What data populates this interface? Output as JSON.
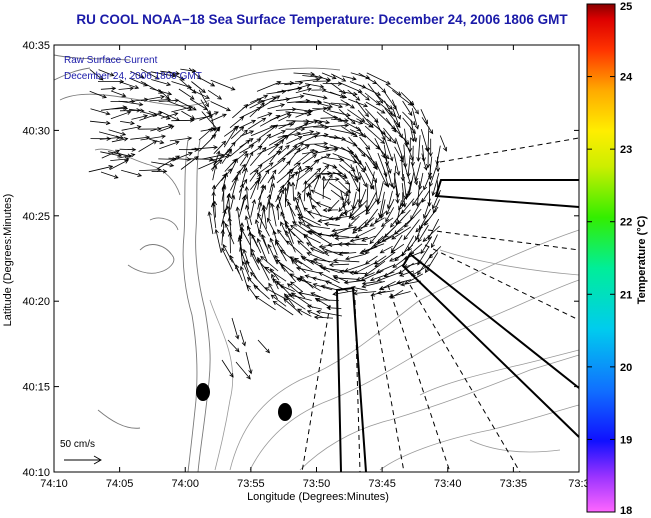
{
  "chart_data": {
    "type": "vector-field-map",
    "title": "RU COOL  NOAA−18  Sea Surface Temperature:  December 24, 2006 1806 GMT",
    "legend_line1": "Raw Surface Current",
    "legend_line2": "December 24, 2006 1800 GMT",
    "xlabel": "Longitude (Degrees:Minutes)",
    "ylabel": "Latitude (Degrees:Minutes)",
    "xticks": [
      "74:10",
      "74:05",
      "74:00",
      "73:55",
      "73:50",
      "73:45",
      "73:40",
      "73:35",
      "73:3"
    ],
    "yticks": [
      "40:35",
      "40:30",
      "40:25",
      "40:20",
      "40:15",
      "40:10"
    ],
    "xlim_deg": [
      -74.1667,
      -73.5
    ],
    "ylim_deg": [
      40.1667,
      40.5833
    ],
    "scale_label": "50 cm/s",
    "colorbar": {
      "label": "Temperature (°C)",
      "ticks": [
        "25",
        "24",
        "23",
        "22",
        "21",
        "20",
        "19",
        "18"
      ],
      "range": [
        18,
        25
      ]
    },
    "grid": false,
    "colors": {
      "title": "#1a1aa8",
      "annotation": "#1a1aa8",
      "coast": "#7a7a7a",
      "contour": "#9a9a9a",
      "vectors": "#000000"
    }
  }
}
